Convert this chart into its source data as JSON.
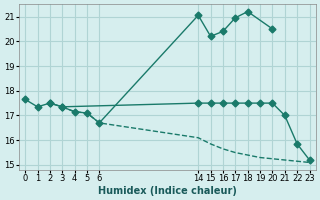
{
  "bg_color": "#d6eeee",
  "grid_color": "#b0d4d4",
  "line_color": "#1a7a6a",
  "xlabel": "Humidex (Indice chaleur)",
  "ylabel": "",
  "xlim": [
    -0.5,
    23.5
  ],
  "ylim": [
    14.8,
    21.5
  ],
  "yticks": [
    15,
    16,
    17,
    18,
    19,
    20,
    21
  ],
  "xticks": [
    0,
    1,
    2,
    3,
    4,
    5,
    6,
    14,
    15,
    16,
    17,
    18,
    19,
    20,
    21,
    22,
    23
  ],
  "line1_x": [
    0,
    1,
    2,
    3,
    4,
    5,
    6,
    14,
    15,
    16,
    17,
    18,
    20
  ],
  "line1_y": [
    17.65,
    17.35,
    17.5,
    17.35,
    17.15,
    17.1,
    16.7,
    21.05,
    20.2,
    20.4,
    20.95,
    21.2,
    20.5
  ],
  "line2_x": [
    2,
    3,
    14,
    15,
    16,
    17,
    18,
    19,
    20,
    21,
    22,
    23
  ],
  "line2_y": [
    17.5,
    17.35,
    17.5,
    17.5,
    17.5,
    17.5,
    17.5,
    17.5,
    17.5,
    17.0,
    15.85,
    15.2
  ],
  "line3_x": [
    3,
    4,
    5,
    6,
    14,
    15,
    16,
    17,
    18,
    19,
    20,
    21,
    22,
    23
  ],
  "line3_y": [
    17.35,
    17.15,
    17.1,
    16.7,
    16.1,
    15.85,
    15.65,
    15.5,
    15.4,
    15.3,
    15.25,
    15.2,
    15.15,
    15.1
  ],
  "marker": "D",
  "markersize": 3.5,
  "linewidth": 1.0
}
